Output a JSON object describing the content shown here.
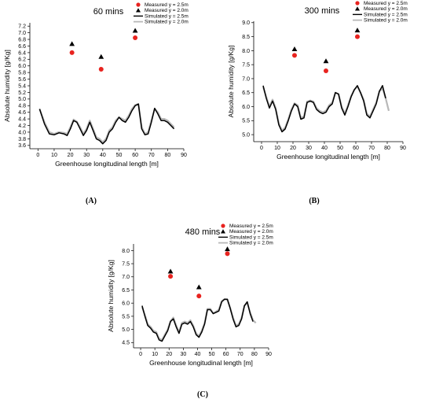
{
  "figure": {
    "panel_labels": [
      "(A)",
      "(B)",
      "(C)"
    ]
  },
  "colors": {
    "measured_25": "#e8231f",
    "measured_20": "#000000",
    "sim_25": "#000000",
    "sim_20": "#b8b8b8"
  },
  "chart_data": [
    {
      "type": "scatter",
      "title": "60 mins",
      "xlabel": "Greenhouse longitudinal length [m]",
      "ylabel": "Absolute humidity [g/Kg]",
      "xlim": [
        -5,
        90
      ],
      "ylim": [
        3.5,
        7.3
      ],
      "xticks": [
        "0",
        "10",
        "20",
        "30",
        "40",
        "50",
        "60",
        "70",
        "80",
        "90"
      ],
      "yticks": [
        "3.6",
        "3.8",
        "4.0",
        "4.2",
        "4.4",
        "4.6",
        "4.8",
        "5.0",
        "5.2",
        "5.4",
        "5.6",
        "5.8",
        "6.0",
        "6.2",
        "6.4",
        "6.6",
        "6.8",
        "7.0",
        "7.2"
      ],
      "legend": {
        "placement": "top-right",
        "entries": [
          "Measured y = 2.5m",
          "Measured y = 2.0m",
          "Simulated y = 2.5m",
          "Simulated y = 2.0m"
        ]
      },
      "series": [
        {
          "name": "Measured y = 2.5m",
          "kind": "marker-circle",
          "x": [
            21,
            39,
            60
          ],
          "y": [
            6.4,
            5.9,
            6.85
          ]
        },
        {
          "name": "Measured y = 2.0m",
          "kind": "marker-triangle",
          "x": [
            21,
            39,
            60
          ],
          "y": [
            6.66,
            6.27,
            7.06
          ]
        },
        {
          "name": "Simulated y = 2.5m",
          "kind": "line",
          "x": [
            1,
            4,
            7,
            10,
            13,
            16,
            18,
            20,
            22,
            24,
            26,
            28,
            30,
            32,
            34,
            36,
            38,
            40,
            42,
            44,
            46,
            48,
            50,
            52,
            54,
            56,
            58,
            60,
            62,
            64,
            66,
            68,
            70,
            72,
            74,
            76,
            78,
            80,
            82,
            84
          ],
          "y": [
            4.7,
            4.25,
            3.95,
            3.92,
            3.98,
            3.95,
            3.9,
            4.1,
            4.35,
            4.3,
            4.1,
            3.9,
            4.05,
            4.3,
            4.05,
            3.8,
            3.75,
            3.65,
            3.75,
            4.0,
            4.1,
            4.3,
            4.45,
            4.35,
            4.3,
            4.45,
            4.65,
            4.8,
            4.85,
            4.1,
            3.92,
            3.95,
            4.3,
            4.72,
            4.55,
            4.35,
            4.35,
            4.3,
            4.2,
            4.1
          ]
        },
        {
          "name": "Simulated y = 2.0m",
          "kind": "line",
          "x": [
            1,
            4,
            7,
            10,
            13,
            16,
            18,
            20,
            22,
            24,
            26,
            28,
            30,
            32,
            34,
            36,
            38,
            40,
            42,
            44,
            46,
            48,
            50,
            52,
            54,
            56,
            58,
            60,
            62,
            64,
            66,
            68,
            70,
            72,
            74,
            76,
            78,
            80,
            82,
            84
          ],
          "y": [
            4.7,
            4.3,
            4.0,
            3.95,
            4.0,
            3.98,
            3.95,
            4.15,
            4.38,
            4.32,
            4.15,
            3.95,
            4.1,
            4.35,
            4.1,
            3.85,
            3.8,
            3.7,
            3.8,
            4.05,
            4.15,
            4.35,
            4.45,
            4.4,
            4.35,
            4.5,
            4.7,
            4.82,
            4.85,
            4.15,
            3.95,
            4.0,
            4.35,
            4.7,
            4.6,
            4.4,
            4.4,
            4.35,
            4.25,
            4.15
          ]
        }
      ]
    },
    {
      "type": "scatter",
      "title": "300 mins",
      "xlabel": "Greenhouse longitudinal length [m]",
      "ylabel": "Absolute humidity [g/Kg]",
      "xlim": [
        -5,
        90
      ],
      "ylim": [
        4.75,
        9.05
      ],
      "xticks": [
        "0",
        "10",
        "20",
        "30",
        "40",
        "50",
        "60",
        "70",
        "80",
        "90"
      ],
      "yticks": [
        "5.0",
        "5.5",
        "6.0",
        "6.5",
        "7.0",
        "7.5",
        "8.0",
        "8.5",
        "9.0"
      ],
      "legend": {
        "placement": "top-right",
        "entries": [
          "Measured y = 2.5m",
          "Measured y = 2.0m",
          "Simulated y = 2.5m",
          "Simulated y = 2.0m"
        ]
      },
      "series": [
        {
          "name": "Measured y = 2.5m",
          "kind": "marker-circle",
          "x": [
            21,
            41,
            61
          ],
          "y": [
            7.83,
            7.28,
            8.5
          ]
        },
        {
          "name": "Measured y = 2.0m",
          "kind": "marker-triangle",
          "x": [
            21,
            41,
            61
          ],
          "y": [
            8.05,
            7.62,
            8.72
          ]
        },
        {
          "name": "Simulated y = 2.5m",
          "kind": "line",
          "x": [
            1,
            3,
            5,
            7,
            9,
            11,
            13,
            15,
            17,
            19,
            21,
            23,
            25,
            27,
            29,
            31,
            33,
            35,
            37,
            39,
            41,
            43,
            45,
            47,
            49,
            51,
            53,
            55,
            57,
            59,
            61,
            63,
            65,
            67,
            69,
            71,
            73,
            75,
            77,
            79
          ],
          "y": [
            6.75,
            6.3,
            5.95,
            6.2,
            5.9,
            5.35,
            5.1,
            5.2,
            5.5,
            5.85,
            6.1,
            6.0,
            5.55,
            5.6,
            6.15,
            6.2,
            6.15,
            5.9,
            5.8,
            5.75,
            5.8,
            6.0,
            6.1,
            6.5,
            6.45,
            5.95,
            5.7,
            6.0,
            6.35,
            6.6,
            6.75,
            6.5,
            6.2,
            5.7,
            5.6,
            5.85,
            6.1,
            6.55,
            6.75,
            6.3
          ]
        },
        {
          "name": "Simulated y = 2.0m",
          "kind": "line",
          "x": [
            1,
            3,
            5,
            7,
            9,
            11,
            13,
            15,
            17,
            19,
            21,
            23,
            25,
            27,
            29,
            31,
            33,
            35,
            37,
            39,
            41,
            43,
            45,
            47,
            49,
            51,
            53,
            55,
            57,
            59,
            61,
            63,
            65,
            67,
            69,
            71,
            73,
            75,
            77,
            79,
            81
          ],
          "y": [
            6.7,
            6.35,
            6.0,
            6.25,
            5.95,
            5.4,
            5.15,
            5.25,
            5.55,
            5.9,
            6.12,
            6.05,
            5.6,
            5.65,
            6.18,
            6.22,
            6.18,
            5.95,
            5.85,
            5.8,
            5.85,
            6.05,
            6.15,
            6.5,
            6.45,
            6.0,
            5.75,
            6.05,
            6.38,
            6.6,
            6.72,
            6.5,
            6.25,
            5.75,
            5.65,
            5.9,
            6.15,
            6.55,
            6.65,
            6.3,
            5.85
          ]
        }
      ]
    },
    {
      "type": "scatter",
      "title": "480 mins",
      "xlabel": "Greenhouse longitudinal length [m]",
      "ylabel": "Absolute humidity [g/Kg]",
      "xlim": [
        -5,
        90
      ],
      "ylim": [
        4.3,
        8.25
      ],
      "xticks": [
        "0",
        "10",
        "20",
        "30",
        "40",
        "50",
        "60",
        "70",
        "80",
        "90"
      ],
      "yticks": [
        "4.5",
        "5.0",
        "5.5",
        "6.0",
        "6.5",
        "7.0",
        "7.5",
        "8.0"
      ],
      "legend": {
        "placement": "top-right",
        "entries": [
          "Measured y = 2.5m",
          "Measured y = 2.0m",
          "Simulated y = 2.5m",
          "Simulated y = 2.0m"
        ]
      },
      "series": [
        {
          "name": "Measured y = 2.5m",
          "kind": "marker-circle",
          "x": [
            21,
            41,
            61
          ],
          "y": [
            7.02,
            6.27,
            7.88
          ]
        },
        {
          "name": "Measured y = 2.0m",
          "kind": "marker-triangle",
          "x": [
            21,
            41,
            61
          ],
          "y": [
            7.2,
            6.6,
            8.05
          ]
        },
        {
          "name": "Simulated y = 2.5m",
          "kind": "line",
          "x": [
            1,
            3,
            5,
            7,
            9,
            11,
            13,
            15,
            17,
            19,
            21,
            23,
            25,
            27,
            29,
            31,
            33,
            35,
            37,
            39,
            41,
            43,
            45,
            47,
            49,
            51,
            53,
            55,
            57,
            59,
            61,
            63,
            65,
            67,
            69,
            71,
            73,
            75,
            77,
            79
          ],
          "y": [
            5.9,
            5.5,
            5.15,
            5.05,
            4.9,
            4.85,
            4.6,
            4.55,
            4.75,
            4.95,
            5.3,
            5.4,
            5.1,
            4.85,
            5.2,
            5.25,
            5.2,
            5.3,
            5.1,
            4.8,
            4.7,
            4.9,
            5.2,
            5.75,
            5.75,
            5.6,
            5.65,
            5.7,
            6.05,
            6.15,
            6.15,
            5.8,
            5.4,
            5.1,
            5.15,
            5.4,
            5.9,
            6.05,
            5.6,
            5.3
          ]
        },
        {
          "name": "Simulated y = 2.0m",
          "kind": "line",
          "x": [
            1,
            3,
            5,
            7,
            9,
            11,
            13,
            15,
            17,
            19,
            21,
            23,
            25,
            27,
            29,
            31,
            33,
            35,
            37,
            39,
            41,
            43,
            45,
            47,
            49,
            51,
            53,
            55,
            57,
            59,
            61,
            63,
            65,
            67,
            69,
            71,
            73,
            75,
            77,
            79,
            81
          ],
          "y": [
            5.85,
            5.55,
            5.2,
            5.1,
            4.95,
            4.9,
            4.65,
            4.6,
            4.8,
            5.0,
            5.32,
            5.45,
            5.15,
            4.9,
            5.25,
            5.3,
            5.25,
            5.35,
            5.15,
            4.85,
            4.75,
            4.95,
            5.25,
            5.78,
            5.78,
            5.62,
            5.68,
            5.75,
            6.08,
            6.15,
            6.12,
            5.82,
            5.45,
            5.15,
            5.2,
            5.45,
            5.9,
            6.0,
            5.65,
            5.35,
            5.25
          ]
        }
      ]
    }
  ]
}
